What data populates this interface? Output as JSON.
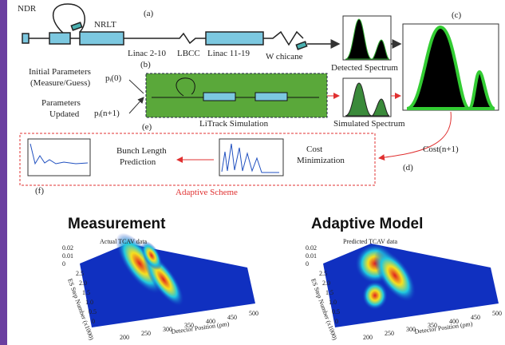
{
  "top": {
    "ndr": "NDR",
    "nrlt": "NRLT",
    "label_a": "(a)",
    "linac1": "Linac 2-10",
    "lbcc": "LBCC",
    "linac2": "Linac 11-19",
    "wchicane": "W chicane",
    "label_b": "(b)",
    "label_c": "(c)",
    "detected": "Detected Spectrum",
    "init1": "Initial Parameters",
    "init2": "(Measure/Guess)",
    "p0": "pᵢ(0)",
    "upd1": "Parameters",
    "upd2": "Updated",
    "pn": "pᵢ(n+1)",
    "litrack": "LiTrack Simulation",
    "label_e": "(e)",
    "simulated": "Simulated Spectrum",
    "cost_n": "Cost(n+1)",
    "label_d": "(d)",
    "bunch1": "Bunch Length",
    "bunch2": "Prediction",
    "cost1": "Cost",
    "cost2": "Minimization",
    "label_f": "(f)",
    "scheme": "Adaptive Scheme"
  },
  "bottom": {
    "panels": [
      {
        "title": "Measurement",
        "inset": "Actual TCAV data",
        "ylabel": "ES Step Number (x1000)",
        "xlabel": "Detector Position (pm)",
        "zticks": [
          "0.02",
          "0.01",
          "0"
        ],
        "yticks": [
          "2.5",
          "2.0",
          "1.5",
          "1.0",
          "0.5",
          "0"
        ],
        "xticks": [
          "200",
          "250",
          "300",
          "350",
          "400",
          "450",
          "500"
        ]
      },
      {
        "title": "Adaptive Model",
        "inset": "Predicted TCAV data",
        "ylabel": "ES Step Number (x1000)",
        "xlabel": "Detector Position (pm)",
        "zticks": [
          "0.02",
          "0.01",
          "0"
        ],
        "yticks": [
          "2.5",
          "2.0",
          "1.5",
          "1.0",
          "0.5",
          "0"
        ],
        "xticks": [
          "200",
          "250",
          "300",
          "350",
          "400",
          "450",
          "500"
        ]
      }
    ]
  }
}
